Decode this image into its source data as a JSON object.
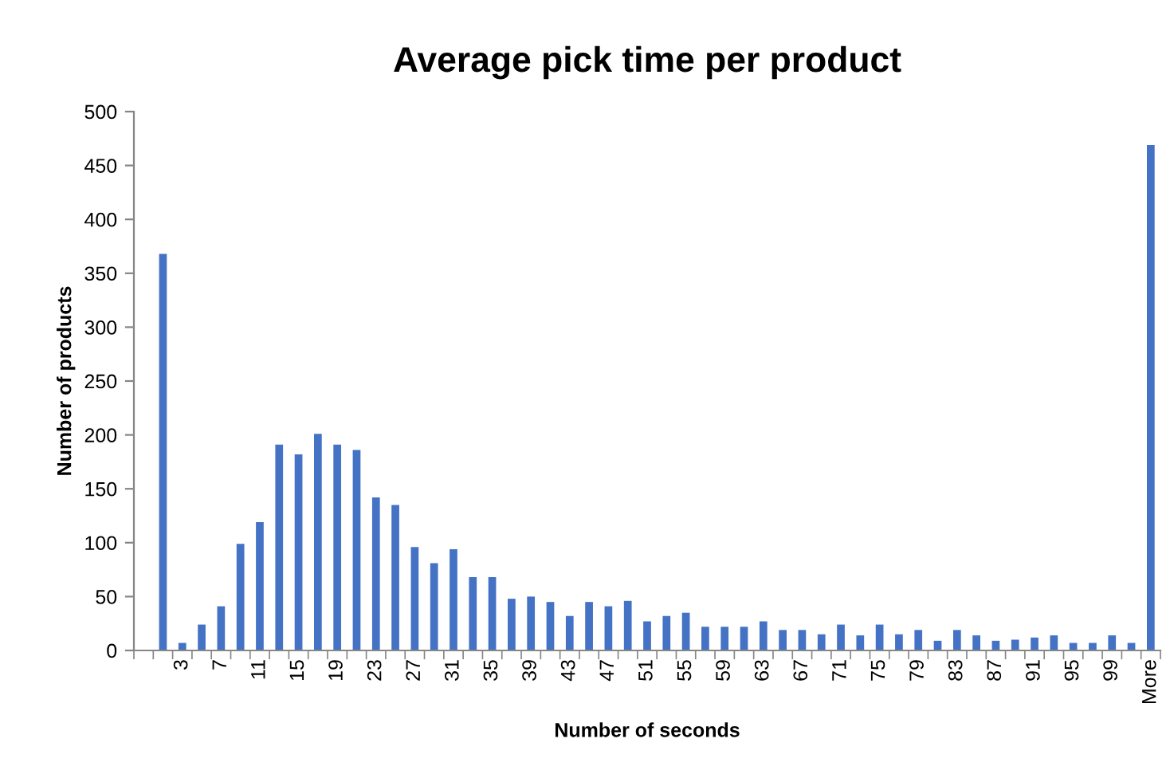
{
  "chart_data": {
    "type": "bar",
    "title": "Average pick time per product",
    "xlabel": "Number of seconds",
    "ylabel": "Number of products",
    "categories": [
      null,
      null,
      "3",
      null,
      "7",
      null,
      "11",
      null,
      "15",
      null,
      "19",
      null,
      "23",
      null,
      "27",
      null,
      "31",
      null,
      "35",
      null,
      "39",
      null,
      "43",
      null,
      "47",
      null,
      "51",
      null,
      "55",
      null,
      "59",
      null,
      "63",
      null,
      "67",
      null,
      "71",
      null,
      "75",
      null,
      "79",
      null,
      "83",
      null,
      "87",
      null,
      "91",
      null,
      "95",
      null,
      "99",
      null,
      "More"
    ],
    "values": [
      0,
      368,
      7,
      24,
      41,
      99,
      119,
      191,
      182,
      201,
      191,
      186,
      142,
      135,
      96,
      81,
      94,
      68,
      68,
      48,
      50,
      45,
      32,
      45,
      41,
      46,
      27,
      32,
      35,
      22,
      22,
      22,
      27,
      19,
      19,
      15,
      24,
      14,
      24,
      15,
      19,
      9,
      19,
      14,
      9,
      10,
      12,
      14,
      7,
      7,
      14,
      7,
      469
    ],
    "color": "#4472c4",
    "ylim": [
      0,
      500
    ],
    "yticks": [
      0,
      50,
      100,
      150,
      200,
      250,
      300,
      350,
      400,
      450,
      500
    ],
    "grid": false
  }
}
